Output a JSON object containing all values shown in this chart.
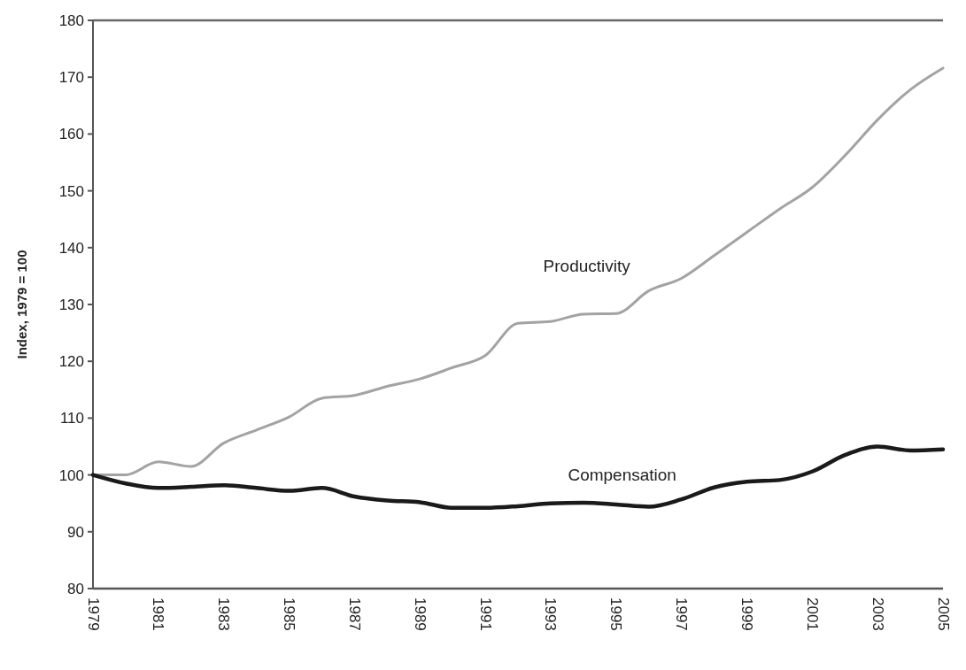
{
  "chart_data": {
    "type": "line",
    "ylabel": "Index, 1979 = 100",
    "x": [
      1979,
      1980,
      1981,
      1982,
      1983,
      1984,
      1985,
      1986,
      1987,
      1988,
      1989,
      1990,
      1991,
      1992,
      1993,
      1994,
      1995,
      1996,
      1997,
      1998,
      1999,
      2000,
      2001,
      2002,
      2003,
      2004,
      2005
    ],
    "xlim": [
      1979,
      2005
    ],
    "xticks": [
      1979,
      1981,
      1983,
      1985,
      1987,
      1989,
      1991,
      1993,
      1995,
      1997,
      1999,
      2001,
      2003,
      2005
    ],
    "ylim": [
      80,
      180
    ],
    "yticks": [
      80,
      90,
      100,
      110,
      120,
      130,
      140,
      150,
      160,
      170,
      180
    ],
    "series": [
      {
        "name": "Productivity",
        "color": "#a3a3a3",
        "values": [
          100,
          100,
          102.3,
          101.5,
          105.6,
          107.9,
          110.2,
          113.5,
          114,
          115.6,
          116.9,
          118.9,
          121,
          126.7,
          127,
          128.3,
          128.4,
          132.4,
          134.6,
          138.6,
          142.7,
          146.8,
          150.6,
          156.2,
          162.5,
          167.8,
          171.6
        ]
      },
      {
        "name": "Compensation",
        "color": "#1a1a1a",
        "values": [
          100,
          98.5,
          97.7,
          97.9,
          98.2,
          97.7,
          97.2,
          97.7,
          96.2,
          95.5,
          95.2,
          94.2,
          94.2,
          94.5,
          95,
          95.1,
          94.8,
          94.4,
          95.7,
          97.8,
          98.8,
          99.1,
          100.6,
          103.5,
          105,
          104.3,
          104.5
        ]
      }
    ],
    "grid": false
  }
}
